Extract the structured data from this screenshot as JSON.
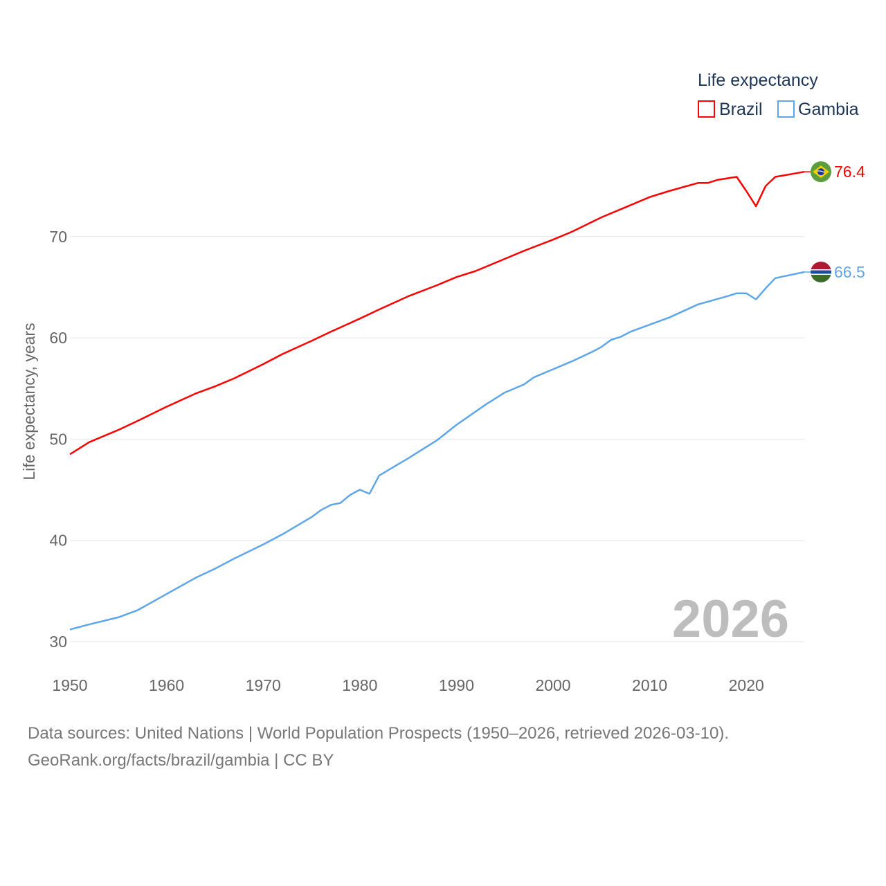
{
  "chart_data": {
    "type": "line",
    "legend_title": "Life expectancy",
    "legend_placement": "top-right",
    "ylabel": "Life expectancy, years",
    "xlabel": "",
    "xlim": [
      1950,
      2026
    ],
    "ylim": [
      30,
      78
    ],
    "xticks": [
      1950,
      1960,
      1970,
      1980,
      1990,
      2000,
      2010,
      2020
    ],
    "yticks": [
      30,
      40,
      50,
      60,
      70
    ],
    "grid": true,
    "year_overlay": "2026",
    "series": [
      {
        "name": "Brazil",
        "color": "#ff0000",
        "end_label": "76.4",
        "flag": "brazil-flag-icon",
        "x": [
          1950,
          1952,
          1955,
          1957,
          1960,
          1963,
          1965,
          1967,
          1970,
          1972,
          1975,
          1977,
          1980,
          1982,
          1985,
          1988,
          1990,
          1992,
          1995,
          1997,
          2000,
          2002,
          2005,
          2007,
          2010,
          2012,
          2015,
          2016,
          2017,
          2019,
          2020,
          2021,
          2022,
          2023,
          2026
        ],
        "y": [
          48.5,
          49.7,
          50.9,
          51.8,
          53.2,
          54.5,
          55.2,
          56.0,
          57.4,
          58.4,
          59.7,
          60.6,
          61.9,
          62.8,
          64.1,
          65.2,
          66.0,
          66.6,
          67.8,
          68.6,
          69.7,
          70.5,
          71.9,
          72.7,
          73.9,
          74.5,
          75.3,
          75.3,
          75.6,
          75.9,
          74.5,
          73.0,
          75.0,
          75.9,
          76.4
        ]
      },
      {
        "name": "Gambia",
        "color": "#5ea6ea",
        "end_label": "66.5",
        "flag": "gambia-flag-icon",
        "x": [
          1950,
          1952,
          1955,
          1957,
          1960,
          1963,
          1965,
          1967,
          1970,
          1972,
          1975,
          1976,
          1977,
          1978,
          1979,
          1980,
          1981,
          1982,
          1985,
          1988,
          1990,
          1993,
          1995,
          1997,
          1998,
          2000,
          2002,
          2004,
          2005,
          2006,
          2007,
          2008,
          2010,
          2012,
          2015,
          2018,
          2019,
          2020,
          2021,
          2022,
          2023,
          2026
        ],
        "y": [
          31.2,
          31.7,
          32.4,
          33.1,
          34.7,
          36.3,
          37.2,
          38.2,
          39.6,
          40.6,
          42.3,
          43.0,
          43.5,
          43.7,
          44.5,
          45.0,
          44.6,
          46.4,
          48.1,
          49.9,
          51.4,
          53.4,
          54.6,
          55.4,
          56.1,
          56.9,
          57.7,
          58.6,
          59.1,
          59.8,
          60.1,
          60.6,
          61.3,
          62.0,
          63.3,
          64.1,
          64.4,
          64.4,
          63.8,
          64.9,
          65.9,
          66.5
        ]
      }
    ]
  },
  "footer": {
    "sources": "Data sources: United Nations | World Population Prospects (1950–2026, retrieved 2026-03-10).",
    "credit": "GeoRank.org/facts/brazil/gambia | CC BY"
  }
}
